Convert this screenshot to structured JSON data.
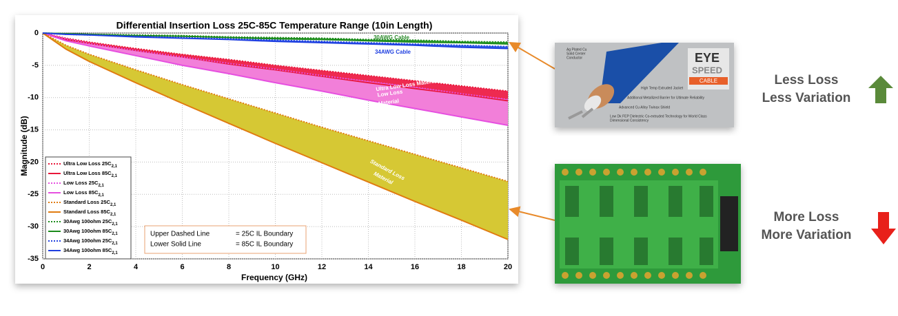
{
  "chart_data": {
    "type": "line",
    "title": "Differential Insertion Loss 25C-85C Temperature Range (10in Length)",
    "x_label": "Frequency (GHz)",
    "y_label": "Magnitude (dB)",
    "x": [
      0,
      1,
      2,
      4,
      6,
      8,
      10,
      12,
      14,
      16,
      18,
      20
    ],
    "xlim": [
      0,
      20
    ],
    "ylim": [
      -35,
      0
    ],
    "xticks": [
      0,
      2,
      4,
      6,
      8,
      10,
      12,
      14,
      16,
      18,
      20
    ],
    "yticks": [
      0,
      -5,
      -10,
      -15,
      -20,
      -25,
      -30,
      -35
    ],
    "grid": true,
    "legend_position": "lower left",
    "legend_subscript": "2,1",
    "series": [
      {
        "name": "Ultra Low Loss 25C",
        "color": "#e8173a",
        "style": "dotted",
        "band_color": "#ee2a50",
        "values": [
          0,
          -0.8,
          -1.4,
          -2.4,
          -3.3,
          -4.1,
          -5.0,
          -5.8,
          -6.6,
          -7.4,
          -8.2,
          -9.0
        ]
      },
      {
        "name": "Ultra Low Loss 85C",
        "color": "#e8173a",
        "style": "solid",
        "values": [
          0,
          -1.0,
          -1.6,
          -2.7,
          -3.7,
          -4.8,
          -5.7,
          -6.7,
          -7.7,
          -8.6,
          -9.5,
          -10.5
        ]
      },
      {
        "name": "Low Loss 25C",
        "color": "#e64fe0",
        "style": "dotted",
        "band_color": "#f27fd9",
        "values": [
          0,
          -0.9,
          -1.6,
          -2.7,
          -3.7,
          -4.7,
          -5.6,
          -6.6,
          -7.5,
          -8.4,
          -9.4,
          -10.3
        ]
      },
      {
        "name": "Low Loss 85C",
        "color": "#e64fe0",
        "style": "solid",
        "values": [
          0,
          -1.2,
          -2.0,
          -3.5,
          -5.0,
          -6.3,
          -7.7,
          -9.0,
          -10.4,
          -11.7,
          -13.0,
          -14.3
        ]
      },
      {
        "name": "Standard Loss 25C",
        "color": "#e07b10",
        "style": "dotted",
        "band_color": "#d6c834",
        "values": [
          0,
          -1.9,
          -3.3,
          -5.7,
          -8.0,
          -10.2,
          -12.4,
          -14.6,
          -16.7,
          -18.8,
          -20.9,
          -23.0
        ]
      },
      {
        "name": "Standard Loss 85C",
        "color": "#e07b10",
        "style": "solid",
        "values": [
          0,
          -2.5,
          -4.4,
          -7.7,
          -10.9,
          -14.0,
          -17.1,
          -20.1,
          -23.1,
          -26.1,
          -29.0,
          -32.0
        ]
      },
      {
        "name": "30Awg 100ohm 25C",
        "color": "#1a8a1a",
        "style": "dotted",
        "band_color": "#3aa03a",
        "values": [
          0,
          -0.1,
          -0.2,
          -0.3,
          -0.4,
          -0.6,
          -0.7,
          -0.8,
          -1.0,
          -1.1,
          -1.3,
          -1.4
        ]
      },
      {
        "name": "30Awg 100ohm 85C",
        "color": "#1a8a1a",
        "style": "solid",
        "values": [
          0,
          -0.1,
          -0.2,
          -0.4,
          -0.5,
          -0.7,
          -0.9,
          -1.0,
          -1.2,
          -1.4,
          -1.5,
          -1.7
        ]
      },
      {
        "name": "34Awg 100ohm 25C",
        "color": "#1f3fe0",
        "style": "dotted",
        "band_color": "#3a6ae8",
        "values": [
          0,
          -0.2,
          -0.3,
          -0.5,
          -0.7,
          -0.9,
          -1.1,
          -1.3,
          -1.5,
          -1.7,
          -1.9,
          -2.1
        ]
      },
      {
        "name": "34Awg 100ohm 85C",
        "color": "#1f3fe0",
        "style": "solid",
        "values": [
          0,
          -0.2,
          -0.3,
          -0.6,
          -0.8,
          -1.0,
          -1.3,
          -1.5,
          -1.7,
          -1.9,
          -2.2,
          -2.4
        ]
      }
    ],
    "annotations": {
      "cable_30awg": "30AWG Cable",
      "cable_34awg": "34AWG Cable",
      "ultra_low_loss": "Ultra Low Loss Material",
      "low_loss": [
        "Low Loss",
        "Material"
      ],
      "standard_loss": [
        "Standard Loss",
        "Material"
      ],
      "boundary_box": [
        [
          "Upper Dashed Line",
          "= 25C IL Boundary"
        ],
        [
          "Lower Solid Line",
          "= 85C IL Boundary"
        ]
      ]
    }
  },
  "cable_image": {
    "logo": [
      "EYE",
      "SPEED",
      "CABLE"
    ],
    "callouts": [
      "Ag Plated Cu",
      "Solid Center",
      "Conductor",
      "High Temp Extruded Jacket",
      "Additional Metallized Barrier for Ultimate Reliability",
      "Advanced Cu Alloy Twinax Shield",
      "Low Dk FEP Dielectric Co-extruded Technology for World Class",
      "Dimensional Consistency"
    ]
  },
  "side_labels": {
    "top": [
      "Less Loss",
      "Less Variation"
    ],
    "bottom": [
      "More Loss",
      "More Variation"
    ]
  }
}
